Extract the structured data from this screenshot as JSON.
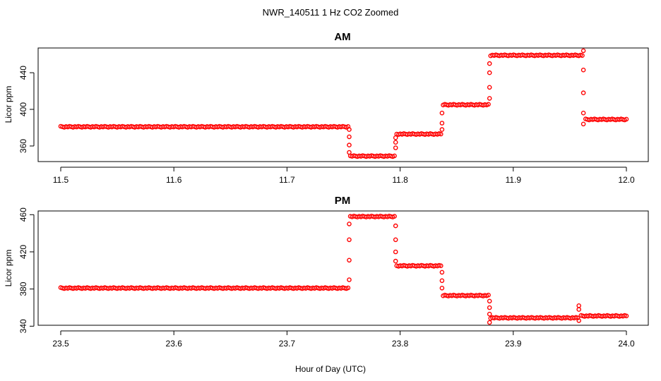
{
  "figure": {
    "title": "NWR_140511  1 Hz CO2 Zoomed",
    "xlabel": "Hour of Day (UTC)"
  },
  "colors": {
    "points": "#ff0000",
    "axes": "#000000"
  },
  "chart_data": [
    {
      "type": "scatter",
      "title": "AM",
      "ylabel": "Licor ppm",
      "xlim": [
        11.5,
        12.0
      ],
      "ylim": [
        343,
        467
      ],
      "xticks": [
        11.5,
        11.6,
        11.7,
        11.8,
        11.9,
        12.0
      ],
      "xtick_labels": [
        "11.5",
        "11.6",
        "11.7",
        "11.8",
        "11.9",
        "12.0"
      ],
      "yticks": [
        360,
        400,
        440
      ],
      "ytick_labels": [
        "360",
        "400",
        "440"
      ],
      "grid": false,
      "series": [
        {
          "marker": "open-circle",
          "segments": [
            {
              "x0": 11.5,
              "x1": 11.754,
              "y": 381
            },
            {
              "x0": 11.756,
              "x1": 11.795,
              "y": 349
            },
            {
              "x0": 11.797,
              "x1": 11.836,
              "y": 373
            },
            {
              "x0": 11.838,
              "x1": 11.878,
              "y": 405
            },
            {
              "x0": 11.88,
              "x1": 11.961,
              "y": 459
            },
            {
              "x0": 11.964,
              "x1": 12.0,
              "y": 389
            }
          ],
          "transition_points": [
            [
              11.755,
              378
            ],
            [
              11.755,
              370
            ],
            [
              11.755,
              361
            ],
            [
              11.755,
              353
            ],
            [
              11.796,
              358
            ],
            [
              11.796,
              364
            ],
            [
              11.796,
              369
            ],
            [
              11.837,
              378
            ],
            [
              11.837,
              385
            ],
            [
              11.837,
              396
            ],
            [
              11.879,
              412
            ],
            [
              11.879,
              424
            ],
            [
              11.879,
              440
            ],
            [
              11.879,
              450
            ],
            [
              11.962,
              464
            ],
            [
              11.962,
              443
            ],
            [
              11.962,
              418
            ],
            [
              11.962,
              396
            ],
            [
              11.962,
              384
            ]
          ]
        }
      ]
    },
    {
      "type": "scatter",
      "title": "PM",
      "ylabel": "Licor ppm",
      "xlim": [
        23.5,
        24.0
      ],
      "ylim": [
        341,
        464
      ],
      "xticks": [
        23.5,
        23.6,
        23.7,
        23.8,
        23.9,
        24.0
      ],
      "xtick_labels": [
        "23.5",
        "23.6",
        "23.7",
        "23.8",
        "23.9",
        "24.0"
      ],
      "yticks": [
        340,
        380,
        420,
        460
      ],
      "ytick_labels": [
        "340",
        "380",
        "420",
        "460"
      ],
      "grid": false,
      "series": [
        {
          "marker": "open-circle",
          "segments": [
            {
              "x0": 23.5,
              "x1": 23.754,
              "y": 381
            },
            {
              "x0": 23.756,
              "x1": 23.795,
              "y": 458
            },
            {
              "x0": 23.797,
              "x1": 23.836,
              "y": 405
            },
            {
              "x0": 23.838,
              "x1": 23.878,
              "y": 373
            },
            {
              "x0": 23.88,
              "x1": 23.957,
              "y": 349
            },
            {
              "x0": 23.96,
              "x1": 24.0,
              "y": 351
            }
          ],
          "transition_points": [
            [
              23.755,
              390
            ],
            [
              23.755,
              411
            ],
            [
              23.755,
              433
            ],
            [
              23.755,
              450
            ],
            [
              23.796,
              448
            ],
            [
              23.796,
              433
            ],
            [
              23.796,
              420
            ],
            [
              23.796,
              410
            ],
            [
              23.837,
              398
            ],
            [
              23.837,
              389
            ],
            [
              23.837,
              381
            ],
            [
              23.879,
              367
            ],
            [
              23.879,
              360
            ],
            [
              23.879,
              353
            ],
            [
              23.879,
              344
            ],
            [
              23.958,
              346
            ],
            [
              23.958,
              358
            ],
            [
              23.958,
              362
            ]
          ]
        }
      ]
    }
  ]
}
